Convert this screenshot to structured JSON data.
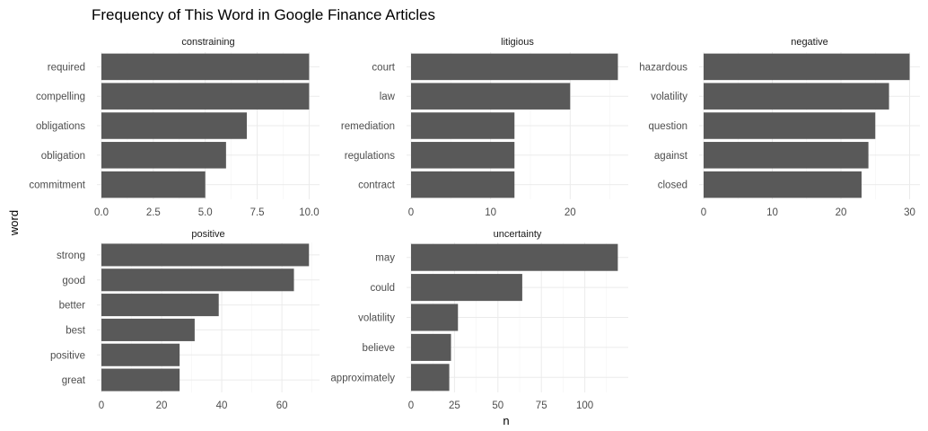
{
  "chart_data": {
    "type": "bar",
    "orientation": "horizontal",
    "title": "Frequency of This Word in Google Finance Articles",
    "xlabel": "n",
    "ylabel": "word",
    "grid": true,
    "bar_color": "#595959",
    "panels": [
      {
        "name": "constraining",
        "categories": [
          "required",
          "compelling",
          "obligations",
          "obligation",
          "commitment"
        ],
        "values": [
          10,
          10,
          7,
          6,
          5
        ],
        "xlim": [
          0,
          10.5
        ],
        "xticks": [
          0,
          2.5,
          5,
          7.5,
          10
        ],
        "xtick_labels": [
          "0.0",
          "2.5",
          "5.0",
          "7.5",
          "10.0"
        ]
      },
      {
        "name": "litigious",
        "categories": [
          "court",
          "law",
          "remediation",
          "regulations",
          "contract"
        ],
        "values": [
          26,
          20,
          13,
          13,
          13
        ],
        "xlim": [
          0,
          27.3
        ],
        "xticks": [
          0,
          10,
          20
        ],
        "xtick_labels": [
          "0",
          "10",
          "20"
        ]
      },
      {
        "name": "negative",
        "categories": [
          "hazardous",
          "volatility",
          "question",
          "against",
          "closed"
        ],
        "values": [
          30,
          27,
          25,
          24,
          23
        ],
        "xlim": [
          0,
          31.5
        ],
        "xticks": [
          0,
          10,
          20,
          30
        ],
        "xtick_labels": [
          "0",
          "10",
          "20",
          "30"
        ]
      },
      {
        "name": "positive",
        "categories": [
          "strong",
          "good",
          "better",
          "best",
          "positive",
          "great"
        ],
        "values": [
          69,
          64,
          39,
          31,
          26,
          26
        ],
        "xlim": [
          0,
          72.5
        ],
        "xticks": [
          0,
          20,
          40,
          60
        ],
        "xtick_labels": [
          "0",
          "20",
          "40",
          "60"
        ]
      },
      {
        "name": "uncertainty",
        "categories": [
          "may",
          "could",
          "volatility",
          "believe",
          "approximately"
        ],
        "values": [
          119,
          64,
          27,
          23,
          22
        ],
        "xlim": [
          0,
          125
        ],
        "xticks": [
          0,
          25,
          50,
          75,
          100
        ],
        "xtick_labels": [
          "0",
          "25",
          "50",
          "75",
          "100"
        ]
      }
    ]
  }
}
